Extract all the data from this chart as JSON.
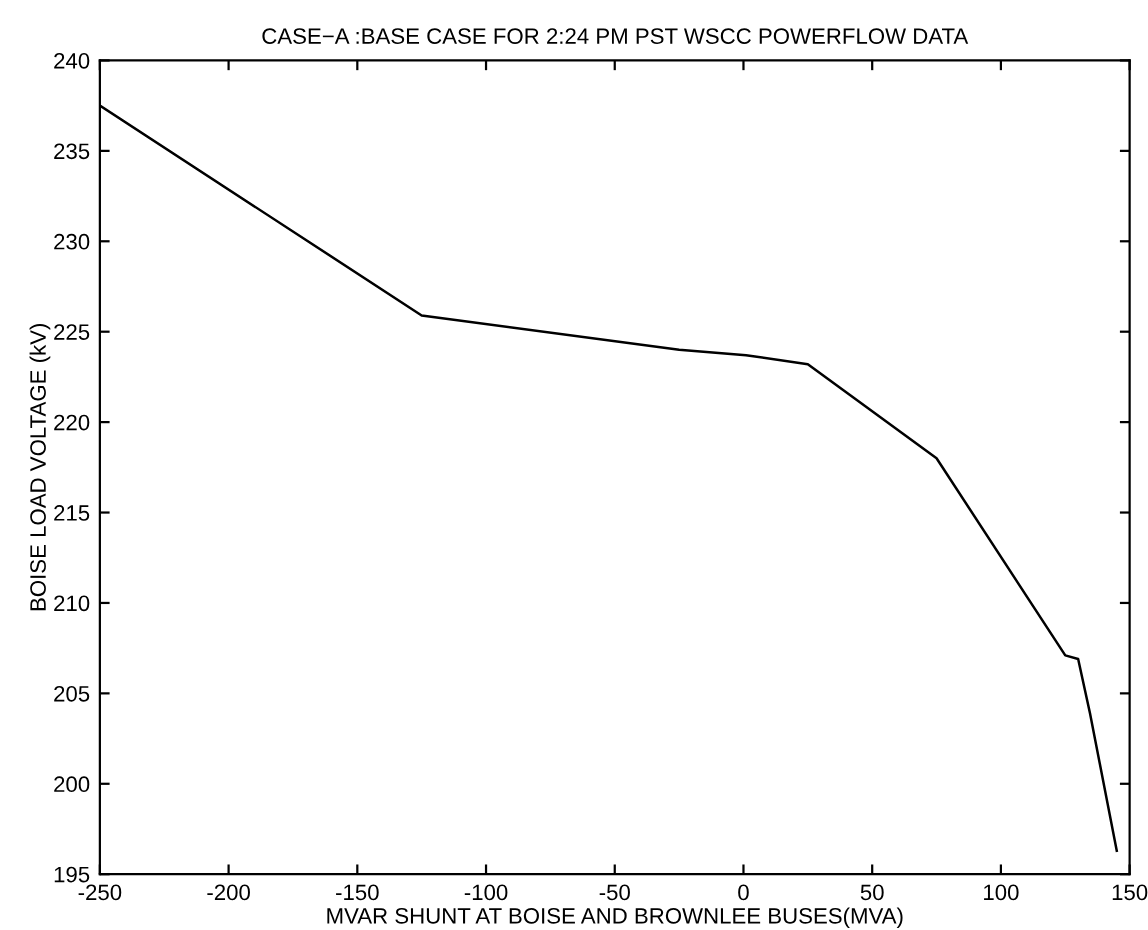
{
  "chart_data": {
    "type": "line",
    "title": "CASE−A :BASE CASE FOR 2:24 PM PST WSCC POWERFLOW DATA",
    "xlabel": "MVAR SHUNT AT BOISE AND BROWNLEE BUSES(MVA)",
    "ylabel": "BOISE LOAD VOLTAGE (kV)",
    "x": [
      -250,
      -125,
      -25,
      1,
      25,
      75,
      125,
      130,
      134.6,
      145
    ],
    "series": [
      {
        "color": "#000000",
        "values": [
          237.5,
          225.9,
          224.0,
          223.7,
          223.2,
          218.0,
          207.1,
          206.9,
          203.9,
          196.3
        ]
      }
    ],
    "xlim": [
      -250,
      150
    ],
    "xticks": [
      -250,
      -200,
      -150,
      -100,
      -50,
      0,
      50,
      100,
      150
    ],
    "ylim": [
      195,
      240
    ],
    "yticks": [
      195,
      200,
      205,
      210,
      215,
      220,
      225,
      230,
      235,
      240
    ],
    "grid": false,
    "legend": false,
    "marker": "none",
    "line_style": "solid"
  }
}
